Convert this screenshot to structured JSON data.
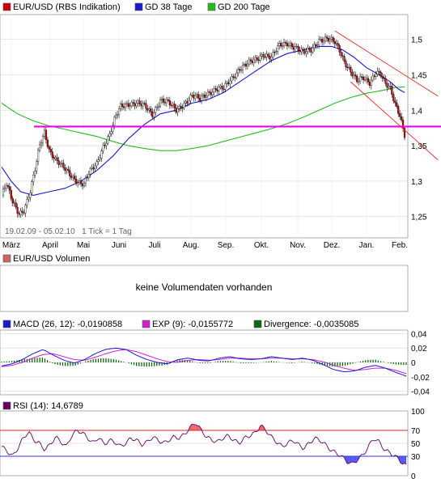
{
  "price_panel": {
    "legend": [
      {
        "label": "EUR/USD (RBS Indikation)",
        "color": "#cc0000"
      },
      {
        "label": "GD 38 Tage",
        "color": "#1a1acc"
      },
      {
        "label": "GD 200 Tage",
        "color": "#22bb22"
      }
    ],
    "footnote": "19.02.09 - 05.02.10   1 Tick = 1 Tag",
    "y_ticks": [
      "1,5",
      "1,45",
      "1,4",
      "1,35",
      "1,3",
      "1,25"
    ],
    "x_ticks": [
      "März",
      "April",
      "Mai",
      "Juni",
      "Juli",
      "Aug.",
      "Sep.",
      "Okt.",
      "Nov.",
      "Dez.",
      "Jan.",
      "Feb."
    ]
  },
  "volume_panel": {
    "legend": {
      "label": "EUR/USD Volumen",
      "color": "#cc6666"
    },
    "message": "keine Volumendaten vorhanden"
  },
  "macd_panel": {
    "legend": [
      {
        "label": "MACD (26, 12): -0,0190858",
        "color": "#1a1acc"
      },
      {
        "label": "EXP (9): -0,0155772",
        "color": "#cc22cc"
      },
      {
        "label": "Divergence: -0,0035085",
        "color": "#116611"
      }
    ],
    "y_ticks": [
      "0,04",
      "0,02",
      "0",
      "-0,02",
      "-0,04"
    ]
  },
  "rsi_panel": {
    "legend": {
      "label": "RSI (14): 14,6789",
      "color": "#660066"
    },
    "y_ticks": [
      "100",
      "70",
      "50",
      "30",
      "0"
    ]
  },
  "chart_data": [
    {
      "type": "candlestick",
      "title": "EUR/USD (RBS Indikation)",
      "period": "19.02.09 - 05.02.10",
      "ylim": [
        1.22,
        1.535
      ],
      "x_months": [
        "März",
        "April",
        "Mai",
        "Juni",
        "Juli",
        "Aug.",
        "Sep.",
        "Okt.",
        "Nov.",
        "Dez.",
        "Jan.",
        "Feb."
      ],
      "close_path": [
        [
          0,
          1.28
        ],
        [
          3,
          1.295
        ],
        [
          7,
          1.27
        ],
        [
          11,
          1.255
        ],
        [
          14,
          1.26
        ],
        [
          18,
          1.285
        ],
        [
          21,
          1.315
        ],
        [
          24,
          1.35
        ],
        [
          27,
          1.37
        ],
        [
          30,
          1.345
        ],
        [
          34,
          1.33
        ],
        [
          38,
          1.32
        ],
        [
          43,
          1.31
        ],
        [
          48,
          1.3
        ],
        [
          52,
          1.295
        ],
        [
          55,
          1.31
        ],
        [
          60,
          1.325
        ],
        [
          64,
          1.35
        ],
        [
          68,
          1.365
        ],
        [
          71,
          1.385
        ],
        [
          75,
          1.405
        ],
        [
          80,
          1.41
        ],
        [
          85,
          1.41
        ],
        [
          90,
          1.405
        ],
        [
          95,
          1.395
        ],
        [
          100,
          1.415
        ],
        [
          105,
          1.41
        ],
        [
          110,
          1.4
        ],
        [
          115,
          1.41
        ],
        [
          120,
          1.42
        ],
        [
          125,
          1.415
        ],
        [
          130,
          1.425
        ],
        [
          135,
          1.43
        ],
        [
          140,
          1.43
        ],
        [
          145,
          1.445
        ],
        [
          150,
          1.46
        ],
        [
          155,
          1.465
        ],
        [
          160,
          1.47
        ],
        [
          165,
          1.48
        ],
        [
          170,
          1.475
        ],
        [
          175,
          1.49
        ],
        [
          180,
          1.495
        ],
        [
          185,
          1.49
        ],
        [
          190,
          1.48
        ],
        [
          195,
          1.485
        ],
        [
          200,
          1.5
        ],
        [
          205,
          1.5
        ],
        [
          210,
          1.495
        ],
        [
          213,
          1.485
        ],
        [
          216,
          1.47
        ],
        [
          220,
          1.455
        ],
        [
          224,
          1.44
        ],
        [
          228,
          1.445
        ],
        [
          232,
          1.44
        ],
        [
          236,
          1.455
        ],
        [
          239,
          1.45
        ],
        [
          242,
          1.435
        ],
        [
          245,
          1.43
        ],
        [
          248,
          1.41
        ],
        [
          251,
          1.395
        ],
        [
          254,
          1.365
        ]
      ],
      "moving_averages": [
        {
          "name": "GD 38 Tage",
          "points": [
            [
              0,
              1.32
            ],
            [
              6,
              1.3
            ],
            [
              12,
              1.285
            ],
            [
              20,
              1.28
            ],
            [
              30,
              1.285
            ],
            [
              40,
              1.29
            ],
            [
              50,
              1.3
            ],
            [
              60,
              1.315
            ],
            [
              70,
              1.335
            ],
            [
              80,
              1.36
            ],
            [
              90,
              1.38
            ],
            [
              100,
              1.395
            ],
            [
              110,
              1.4
            ],
            [
              120,
              1.41
            ],
            [
              130,
              1.415
            ],
            [
              140,
              1.425
            ],
            [
              150,
              1.44
            ],
            [
              160,
              1.455
            ],
            [
              170,
              1.47
            ],
            [
              180,
              1.48
            ],
            [
              190,
              1.485
            ],
            [
              200,
              1.49
            ],
            [
              208,
              1.49
            ],
            [
              215,
              1.485
            ],
            [
              222,
              1.475
            ],
            [
              230,
              1.46
            ],
            [
              238,
              1.45
            ],
            [
              245,
              1.44
            ],
            [
              250,
              1.43
            ],
            [
              254,
              1.425
            ]
          ]
        },
        {
          "name": "GD 200 Tage",
          "points": [
            [
              0,
              1.41
            ],
            [
              10,
              1.395
            ],
            [
              20,
              1.385
            ],
            [
              30,
              1.378
            ],
            [
              40,
              1.373
            ],
            [
              50,
              1.368
            ],
            [
              60,
              1.363
            ],
            [
              70,
              1.356
            ],
            [
              80,
              1.35
            ],
            [
              90,
              1.346
            ],
            [
              100,
              1.343
            ],
            [
              110,
              1.343
            ],
            [
              120,
              1.346
            ],
            [
              130,
              1.35
            ],
            [
              140,
              1.356
            ],
            [
              150,
              1.362
            ],
            [
              160,
              1.368
            ],
            [
              170,
              1.374
            ],
            [
              180,
              1.381
            ],
            [
              190,
              1.39
            ],
            [
              200,
              1.4
            ],
            [
              210,
              1.41
            ],
            [
              220,
              1.418
            ],
            [
              230,
              1.424
            ],
            [
              240,
              1.428
            ],
            [
              248,
              1.432
            ],
            [
              254,
              1.433
            ]
          ]
        }
      ],
      "lines": [
        {
          "kind": "horizontal support",
          "y": 1.377,
          "color": "#ee00ee"
        },
        {
          "kind": "trend channel upper",
          "from": [
            210,
            1.512
          ],
          "to": [
            275,
            1.42
          ],
          "color": "#ee2222"
        },
        {
          "kind": "trend channel lower",
          "from": [
            220,
            1.44
          ],
          "to": [
            275,
            1.33
          ],
          "color": "#ee2222"
        }
      ]
    },
    {
      "type": "line",
      "title": "MACD (26, 12)",
      "ylim": [
        -0.045,
        0.045
      ],
      "series": [
        {
          "name": "MACD",
          "values": [
            -0.005,
            -0.002,
            0.004,
            0.012,
            0.018,
            0.01,
            0.003,
            -0.001,
            0.004,
            0.012,
            0.018,
            0.02,
            0.018,
            0.01,
            0.004,
            0.0,
            -0.002,
            0.004,
            0.006,
            0.003,
            0.002,
            0.006,
            0.008,
            0.005,
            0.004,
            0.005,
            0.008,
            0.006,
            0.004,
            0.006,
            0.003,
            -0.003,
            -0.01,
            -0.013,
            -0.012,
            -0.007,
            -0.004,
            -0.008,
            -0.014,
            -0.019
          ]
        },
        {
          "name": "EXP",
          "values": [
            -0.006,
            -0.004,
            0.0,
            0.006,
            0.011,
            0.012,
            0.008,
            0.004,
            0.003,
            0.007,
            0.012,
            0.016,
            0.018,
            0.015,
            0.01,
            0.005,
            0.001,
            0.0,
            0.003,
            0.004,
            0.003,
            0.004,
            0.006,
            0.006,
            0.005,
            0.005,
            0.006,
            0.006,
            0.005,
            0.005,
            0.004,
            0.001,
            -0.004,
            -0.008,
            -0.011,
            -0.01,
            -0.008,
            -0.008,
            -0.011,
            -0.0156
          ]
        },
        {
          "name": "Divergence",
          "values": [
            0.001,
            0.002,
            0.004,
            0.006,
            0.007,
            -0.002,
            -0.005,
            -0.005,
            0.001,
            0.005,
            0.006,
            0.004,
            0.0,
            -0.005,
            -0.006,
            -0.005,
            -0.003,
            0.004,
            0.003,
            -0.001,
            -0.001,
            0.002,
            0.002,
            -0.001,
            -0.001,
            0.0,
            0.002,
            0.0,
            -0.001,
            0.001,
            -0.001,
            -0.004,
            -0.006,
            -0.005,
            -0.001,
            0.003,
            0.004,
            0.0,
            -0.003,
            -0.0035
          ]
        }
      ]
    },
    {
      "type": "line",
      "title": "RSI (14)",
      "ylim": [
        0,
        100
      ],
      "reference_lines": [
        70,
        30
      ],
      "series": [
        {
          "name": "RSI (14)",
          "values": [
            45,
            38,
            30,
            42,
            58,
            68,
            55,
            50,
            40,
            48,
            60,
            52,
            45,
            62,
            70,
            66,
            58,
            50,
            60,
            48,
            55,
            52,
            45,
            50,
            58,
            55,
            48,
            52,
            60,
            55,
            50,
            55,
            60,
            58,
            65,
            75,
            82,
            70,
            60,
            55,
            52,
            58,
            62,
            55,
            50,
            58,
            62,
            66,
            78,
            70,
            60,
            52,
            45,
            50,
            55,
            48,
            42,
            50,
            58,
            55,
            48,
            40,
            35,
            30,
            22,
            18,
            25,
            32,
            45,
            58,
            52,
            40,
            35,
            30,
            22,
            15
          ]
        }
      ]
    }
  ]
}
